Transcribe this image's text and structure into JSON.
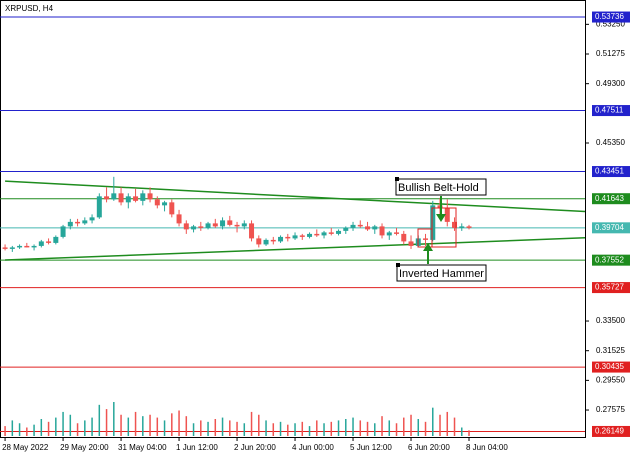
{
  "chart_data": {
    "type": "candlestick",
    "title": "XRPUSD, H4",
    "candles": [
      [
        0.384,
        0.386,
        0.382,
        0.383
      ],
      [
        0.383,
        0.385,
        0.381,
        0.384
      ],
      [
        0.384,
        0.386,
        0.383,
        0.385
      ],
      [
        0.385,
        0.387,
        0.384,
        0.384
      ],
      [
        0.384,
        0.386,
        0.382,
        0.385
      ],
      [
        0.385,
        0.389,
        0.384,
        0.388
      ],
      [
        0.388,
        0.39,
        0.386,
        0.387
      ],
      [
        0.387,
        0.392,
        0.386,
        0.391
      ],
      [
        0.391,
        0.399,
        0.39,
        0.398
      ],
      [
        0.398,
        0.403,
        0.396,
        0.401
      ],
      [
        0.401,
        0.403,
        0.398,
        0.4
      ],
      [
        0.4,
        0.404,
        0.399,
        0.402
      ],
      [
        0.402,
        0.406,
        0.4,
        0.404
      ],
      [
        0.404,
        0.42,
        0.403,
        0.418
      ],
      [
        0.418,
        0.424,
        0.414,
        0.416
      ],
      [
        0.416,
        0.431,
        0.415,
        0.42
      ],
      [
        0.42,
        0.424,
        0.412,
        0.414
      ],
      [
        0.414,
        0.42,
        0.41,
        0.418
      ],
      [
        0.418,
        0.423,
        0.414,
        0.415
      ],
      [
        0.415,
        0.422,
        0.412,
        0.42
      ],
      [
        0.42,
        0.424,
        0.414,
        0.416
      ],
      [
        0.416,
        0.418,
        0.41,
        0.412
      ],
      [
        0.412,
        0.415,
        0.408,
        0.414
      ],
      [
        0.414,
        0.416,
        0.404,
        0.406
      ],
      [
        0.406,
        0.409,
        0.398,
        0.4
      ],
      [
        0.4,
        0.402,
        0.393,
        0.396
      ],
      [
        0.396,
        0.399,
        0.394,
        0.398
      ],
      [
        0.398,
        0.401,
        0.395,
        0.397
      ],
      [
        0.397,
        0.401,
        0.396,
        0.4
      ],
      [
        0.4,
        0.403,
        0.397,
        0.398
      ],
      [
        0.398,
        0.404,
        0.396,
        0.402
      ],
      [
        0.402,
        0.405,
        0.398,
        0.399
      ],
      [
        0.399,
        0.401,
        0.394,
        0.398
      ],
      [
        0.398,
        0.402,
        0.396,
        0.4
      ],
      [
        0.4,
        0.402,
        0.388,
        0.39
      ],
      [
        0.39,
        0.392,
        0.384,
        0.386
      ],
      [
        0.386,
        0.39,
        0.385,
        0.389
      ],
      [
        0.389,
        0.391,
        0.386,
        0.388
      ],
      [
        0.388,
        0.392,
        0.387,
        0.391
      ],
      [
        0.391,
        0.393,
        0.388,
        0.39
      ],
      [
        0.39,
        0.394,
        0.389,
        0.392
      ],
      [
        0.392,
        0.393,
        0.389,
        0.391
      ],
      [
        0.391,
        0.394,
        0.39,
        0.393
      ],
      [
        0.393,
        0.396,
        0.391,
        0.392
      ],
      [
        0.392,
        0.395,
        0.39,
        0.394
      ],
      [
        0.394,
        0.397,
        0.392,
        0.393
      ],
      [
        0.393,
        0.396,
        0.392,
        0.395
      ],
      [
        0.395,
        0.398,
        0.393,
        0.397
      ],
      [
        0.397,
        0.401,
        0.395,
        0.399
      ],
      [
        0.399,
        0.402,
        0.397,
        0.398
      ],
      [
        0.398,
        0.401,
        0.395,
        0.396
      ],
      [
        0.396,
        0.399,
        0.393,
        0.398
      ],
      [
        0.398,
        0.4,
        0.39,
        0.392
      ],
      [
        0.392,
        0.395,
        0.389,
        0.394
      ],
      [
        0.394,
        0.397,
        0.392,
        0.393
      ],
      [
        0.393,
        0.395,
        0.386,
        0.388
      ],
      [
        0.388,
        0.392,
        0.383,
        0.385
      ],
      [
        0.385,
        0.392,
        0.384,
        0.39
      ],
      [
        0.39,
        0.393,
        0.385,
        0.389
      ],
      [
        0.389,
        0.415,
        0.388,
        0.412
      ],
      [
        0.412,
        0.417,
        0.405,
        0.41
      ],
      [
        0.41,
        0.416,
        0.398,
        0.401
      ],
      [
        0.401,
        0.404,
        0.395,
        0.397
      ],
      [
        0.397,
        0.4,
        0.395,
        0.398
      ],
      [
        0.398,
        0.399,
        0.396,
        0.397
      ]
    ],
    "volume": [
      14,
      22,
      18,
      12,
      16,
      24,
      20,
      26,
      34,
      30,
      18,
      22,
      26,
      44,
      38,
      48,
      30,
      26,
      34,
      28,
      30,
      26,
      22,
      32,
      36,
      28,
      18,
      22,
      20,
      24,
      26,
      22,
      20,
      18,
      34,
      30,
      22,
      18,
      20,
      16,
      18,
      20,
      14,
      22,
      18,
      20,
      22,
      24,
      26,
      22,
      20,
      18,
      28,
      22,
      18,
      26,
      30,
      24,
      20,
      40,
      30,
      34,
      26,
      12,
      8
    ],
    "bull_color": "#26a69a",
    "bear_color": "#ef5350",
    "xlim": [
      -0.7,
      80
    ],
    "ylim": [
      0.2578,
      0.5487
    ],
    "xticks": [
      {
        "value": 0,
        "label": "28 May 2022"
      },
      {
        "value": 8,
        "label": "29 May 20:00"
      },
      {
        "value": 16,
        "label": "31 May 04:00"
      },
      {
        "value": 24,
        "label": "1 Jun 12:00"
      },
      {
        "value": 32,
        "label": "2 Jun 20:00"
      },
      {
        "value": 40,
        "label": "4 Jun 00:00"
      },
      {
        "value": 48,
        "label": "5 Jun 12:00"
      },
      {
        "value": 56,
        "label": "6 Jun 20:00"
      },
      {
        "value": 64,
        "label": "8 Jun 04:00"
      }
    ],
    "yticks": [
      {
        "value": 0.5325,
        "label": "0.53250"
      },
      {
        "value": 0.51275,
        "label": "0.51275"
      },
      {
        "value": 0.493,
        "label": "0.49300"
      },
      {
        "value": 0.4535,
        "label": "0.45350"
      },
      {
        "value": 0.335,
        "label": "0.33500"
      },
      {
        "value": 0.31525,
        "label": "0.31525"
      },
      {
        "value": 0.2955,
        "label": "0.29550"
      },
      {
        "value": 0.27575,
        "label": "0.27575"
      }
    ],
    "levels": [
      {
        "value": 0.53736,
        "label": "0.53736",
        "color": "#2222cc"
      },
      {
        "value": 0.47511,
        "label": "0.47511",
        "color": "#2222cc"
      },
      {
        "value": 0.43451,
        "label": "0.43451",
        "color": "#2222cc"
      },
      {
        "value": 0.41643,
        "label": "0.41643",
        "color": "#1e8c1e"
      },
      {
        "value": 0.39704,
        "label": "0.39704",
        "color": "#45b8b0"
      },
      {
        "value": 0.37552,
        "label": "0.37552",
        "color": "#1e8c1e"
      },
      {
        "value": 0.35727,
        "label": "0.35727",
        "color": "#e02020"
      },
      {
        "value": 0.30435,
        "label": "0.30435",
        "color": "#e02020"
      },
      {
        "value": 0.26149,
        "label": "0.26149",
        "color": "#e02020"
      }
    ],
    "trendlines": [
      {
        "x": [
          0,
          80
        ],
        "y": [
          0.4281,
          0.4079
        ],
        "color": "#1e8c1e"
      },
      {
        "x": [
          0,
          80
        ],
        "y": [
          0.3756,
          0.3904
        ],
        "color": "#1e8c1e"
      }
    ],
    "annotations": [
      {
        "text": "Bullish Belt-Hold"
      },
      {
        "text": "Inverted Hammer"
      }
    ]
  }
}
